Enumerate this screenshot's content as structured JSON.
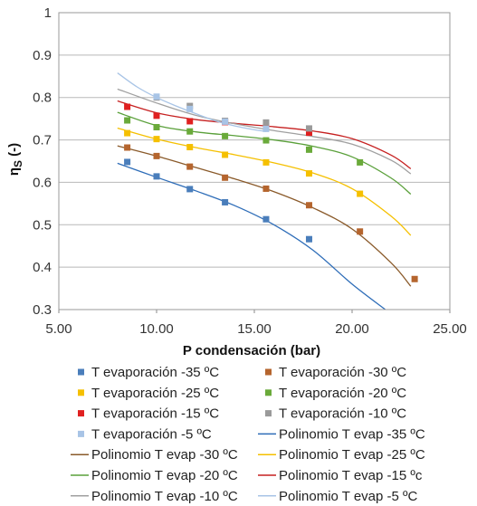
{
  "chart_data": {
    "type": "scatter",
    "title": "",
    "xlabel": "P condensación (bar)",
    "ylabel_main": "η",
    "ylabel_sub": "S",
    "ylabel_rest": " (-)",
    "xlim": [
      5,
      25
    ],
    "ylim": [
      0.3,
      1.0
    ],
    "x_ticks": [
      5,
      10,
      15,
      20,
      25
    ],
    "x_tick_labels": [
      "5.00",
      "10.00",
      "15.00",
      "20.00",
      "25.00"
    ],
    "y_ticks": [
      0.3,
      0.4,
      0.5,
      0.6,
      0.7,
      0.8,
      0.9,
      1.0
    ],
    "y_tick_labels": [
      "0.3",
      "0.4",
      "0.5",
      "0.6",
      "0.7",
      "0.8",
      "0.9",
      "1"
    ],
    "grid": "horizontal",
    "legend_position": "bottom",
    "marker_series": [
      {
        "name": "T evaporación -35 ºC",
        "color": "#4a7ebb",
        "x": [
          8.5,
          10.0,
          11.7,
          13.5,
          15.6,
          17.8
        ],
        "y": [
          0.648,
          0.614,
          0.584,
          0.553,
          0.513,
          0.466
        ]
      },
      {
        "name": "T evaporación -30 ºC",
        "color": "#b5652e",
        "x": [
          8.5,
          10.0,
          11.7,
          13.5,
          15.6,
          17.8,
          20.4,
          23.2
        ],
        "y": [
          0.682,
          0.662,
          0.637,
          0.611,
          0.585,
          0.546,
          0.484,
          0.372
        ]
      },
      {
        "name": "T evaporación -25 ºC",
        "color": "#f5c000",
        "x": [
          8.5,
          10.0,
          11.7,
          13.5,
          15.6,
          17.8,
          20.4
        ],
        "y": [
          0.716,
          0.702,
          0.683,
          0.665,
          0.647,
          0.621,
          0.573
        ]
      },
      {
        "name": "T evaporación -20 ºC",
        "color": "#6aaa3a",
        "x": [
          8.5,
          10.0,
          11.7,
          13.5,
          15.6,
          17.8,
          20.4
        ],
        "y": [
          0.746,
          0.73,
          0.72,
          0.709,
          0.699,
          0.677,
          0.647
        ]
      },
      {
        "name": "T evaporación -15 ºC",
        "color": "#e02020",
        "x": [
          8.5,
          10.0,
          11.7,
          13.5,
          15.6,
          17.8
        ],
        "y": [
          0.778,
          0.757,
          0.744,
          0.742,
          0.731,
          0.717
        ]
      },
      {
        "name": "T evaporación -10 ºC",
        "color": "#9a9a9a",
        "x": [
          10.0,
          11.7,
          13.5,
          15.6,
          17.8
        ],
        "y": [
          0.8,
          0.78,
          0.745,
          0.741,
          0.727
        ]
      },
      {
        "name": "T evaporación -5 ºC",
        "color": "#a8c4e6",
        "x": [
          10.0,
          11.7,
          13.5,
          15.6
        ],
        "y": [
          0.802,
          0.773,
          0.743,
          0.726
        ]
      }
    ],
    "line_series": [
      {
        "name": "Polinomio T evap -35 ºC",
        "color": "#2e6db8",
        "x": [
          8.0,
          10.0,
          12.0,
          14.0,
          16.0,
          18.0,
          20.0,
          21.7
        ],
        "y": [
          0.645,
          0.612,
          0.58,
          0.545,
          0.5,
          0.44,
          0.36,
          0.3
        ]
      },
      {
        "name": "Polinomio T evap -30 ºC",
        "color": "#8a5a2a",
        "x": [
          8.0,
          10.0,
          12.0,
          14.0,
          16.0,
          18.0,
          20.0,
          22.0,
          23.0
        ],
        "y": [
          0.686,
          0.662,
          0.635,
          0.608,
          0.578,
          0.54,
          0.49,
          0.41,
          0.355
        ]
      },
      {
        "name": "Polinomio T evap -25 ºC",
        "color": "#f5c000",
        "x": [
          8.0,
          10.0,
          12.0,
          14.0,
          16.0,
          18.0,
          20.0,
          22.0,
          23.0
        ],
        "y": [
          0.728,
          0.702,
          0.682,
          0.665,
          0.646,
          0.622,
          0.585,
          0.52,
          0.475
        ]
      },
      {
        "name": "Polinomio T evap -20 ºC",
        "color": "#5aa03a",
        "x": [
          8.0,
          10.0,
          12.0,
          14.0,
          16.0,
          18.0,
          20.0,
          22.0,
          23.0
        ],
        "y": [
          0.765,
          0.734,
          0.719,
          0.71,
          0.7,
          0.685,
          0.66,
          0.61,
          0.572
        ]
      },
      {
        "name": "Polinomio T evap -15 ºc",
        "color": "#c62020",
        "x": [
          8.0,
          10.0,
          12.0,
          14.0,
          16.0,
          18.0,
          20.0,
          22.0,
          23.0
        ],
        "y": [
          0.792,
          0.764,
          0.748,
          0.739,
          0.731,
          0.721,
          0.703,
          0.664,
          0.632
        ]
      },
      {
        "name": "Polinomio T evap -10 ºC",
        "color": "#a0a0a0",
        "x": [
          8.0,
          10.0,
          12.0,
          14.0,
          16.0,
          18.0,
          20.0,
          22.0,
          23.0
        ],
        "y": [
          0.82,
          0.787,
          0.758,
          0.738,
          0.722,
          0.708,
          0.69,
          0.652,
          0.62
        ]
      },
      {
        "name": "Polinomio T evap -5 ºC",
        "color": "#a8c4e6",
        "x": [
          8.0,
          9.0,
          10.0,
          11.0,
          12.0,
          13.0,
          14.0,
          15.0,
          15.6
        ],
        "y": [
          0.858,
          0.825,
          0.8,
          0.78,
          0.762,
          0.745,
          0.733,
          0.724,
          0.72
        ]
      }
    ],
    "legend_order": [
      {
        "kind": "marker",
        "index": 0
      },
      {
        "kind": "marker",
        "index": 1
      },
      {
        "kind": "marker",
        "index": 2
      },
      {
        "kind": "marker",
        "index": 3
      },
      {
        "kind": "marker",
        "index": 4
      },
      {
        "kind": "marker",
        "index": 5
      },
      {
        "kind": "marker",
        "index": 6
      },
      {
        "kind": "line",
        "index": 0
      },
      {
        "kind": "line",
        "index": 1
      },
      {
        "kind": "line",
        "index": 2
      },
      {
        "kind": "line",
        "index": 3
      },
      {
        "kind": "line",
        "index": 4
      },
      {
        "kind": "line",
        "index": 5
      },
      {
        "kind": "line",
        "index": 6
      }
    ]
  }
}
